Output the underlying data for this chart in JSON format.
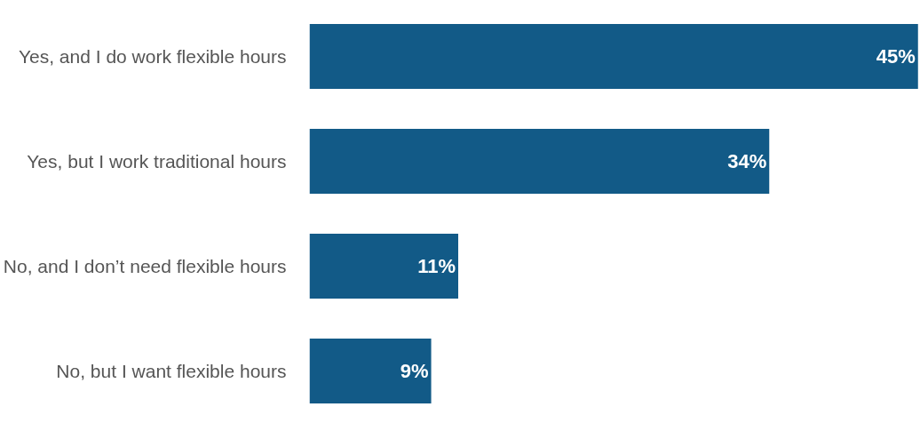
{
  "chart_data": {
    "type": "bar",
    "orientation": "horizontal",
    "categories": [
      "Yes, and I do work flexible hours",
      "Yes, but I work traditional hours",
      "No, and I don’t need flexible hours",
      "No, but I want flexible hours"
    ],
    "values": [
      45,
      34,
      11,
      9
    ],
    "value_labels": [
      "45%",
      "34%",
      "11%",
      "9%"
    ],
    "color": "#125a87",
    "grid": false
  }
}
